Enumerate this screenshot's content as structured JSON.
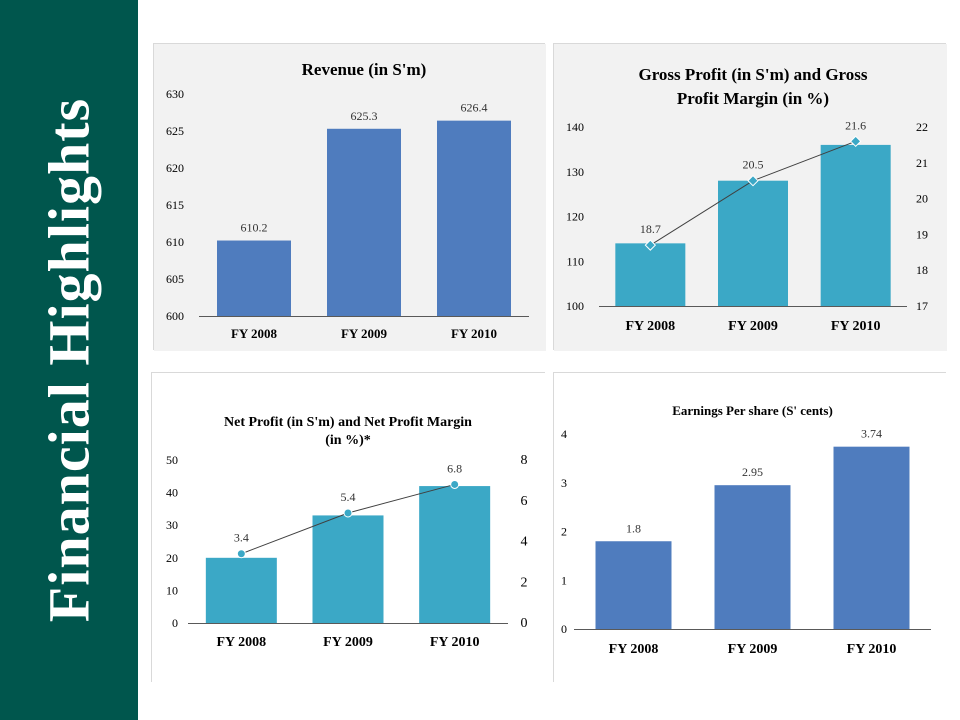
{
  "page": {
    "title": "Financial Highlights",
    "sidebar_color": "#00564d"
  },
  "chart_data": [
    {
      "id": "revenue",
      "type": "bar",
      "title": "Revenue (in S'm)",
      "categories": [
        "FY 2008",
        "FY 2009",
        "FY 2010"
      ],
      "values": [
        610.2,
        625.3,
        626.4
      ],
      "labels": [
        "610.2",
        "625.3",
        "626.4"
      ],
      "ylim": [
        600,
        630
      ],
      "yticks": [
        600,
        605,
        610,
        615,
        620,
        625,
        630
      ],
      "color": "#4f7cbe",
      "background": "#f2f2f2",
      "xlabel": "",
      "ylabel": ""
    },
    {
      "id": "gross-profit",
      "type": "bar",
      "title": "Gross Profit (in S'm) and Gross Profit Margin (in %)",
      "title_lines": [
        "Gross Profit (in S'm) and Gross",
        "Profit Margin (in %)"
      ],
      "categories": [
        "FY 2008",
        "FY 2009",
        "FY 2010"
      ],
      "values": [
        114,
        128,
        136
      ],
      "ylim": [
        100,
        140
      ],
      "yticks": [
        100,
        110,
        120,
        130,
        140
      ],
      "color": "#3ba8c6",
      "background": "#f2f2f2",
      "line": {
        "name": "Gross Profit Margin (in %)",
        "values": [
          18.7,
          20.5,
          21.6
        ],
        "labels": [
          "18.7",
          "20.5",
          "21.6"
        ],
        "ylim": [
          17,
          22
        ],
        "yticks": [
          17,
          18,
          19,
          20,
          21,
          22
        ],
        "marker": "diamond",
        "color": "#3ba8c6"
      }
    },
    {
      "id": "net-profit",
      "type": "bar",
      "title": "Net Profit (in S'm) and Net Profit Margin (in %)*",
      "title_lines": [
        "Net Profit (in S'm) and Net Profit Margin",
        "(in %)*"
      ],
      "categories": [
        "FY 2008",
        "FY 2009",
        "FY 2010"
      ],
      "values": [
        20,
        33,
        42
      ],
      "ylim": [
        0,
        50
      ],
      "yticks": [
        0,
        10,
        20,
        30,
        40,
        50
      ],
      "color": "#3ba8c6",
      "background": "#ffffff",
      "line": {
        "name": "Net Profit Margin (in %)",
        "values": [
          3.4,
          5.4,
          6.8
        ],
        "labels": [
          "3.4",
          "5.4",
          "6.8"
        ],
        "ylim": [
          0,
          8
        ],
        "yticks": [
          0,
          2,
          4,
          6,
          8
        ],
        "marker": "circle",
        "color": "#3ba8c6"
      }
    },
    {
      "id": "eps",
      "type": "bar",
      "title": "Earnings Per share (S' cents)",
      "categories": [
        "FY 2008",
        "FY 2009",
        "FY 2010"
      ],
      "values": [
        1.8,
        2.95,
        3.74
      ],
      "labels": [
        "1.8",
        "2.95",
        "3.74"
      ],
      "ylim": [
        0,
        4
      ],
      "yticks": [
        0,
        1,
        2,
        3,
        4
      ],
      "color": "#4f7cbe",
      "background": "#ffffff"
    }
  ]
}
